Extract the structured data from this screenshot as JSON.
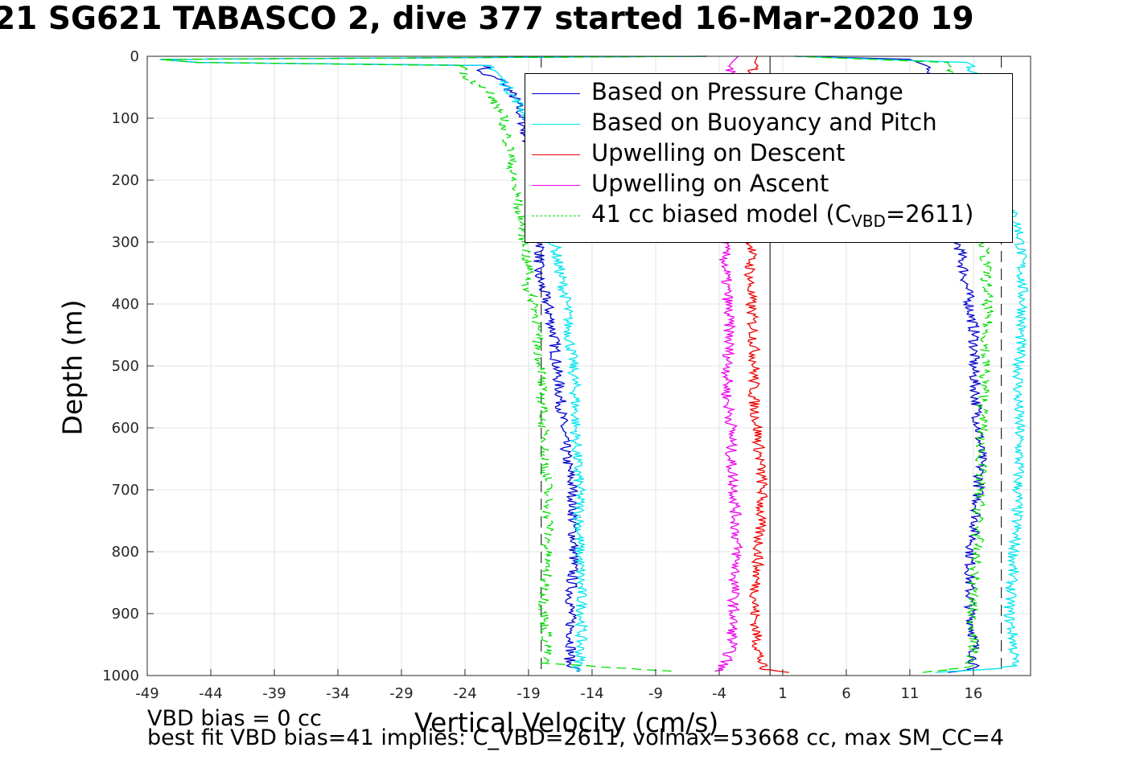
{
  "title": "21 SG621 TABASCO 2, dive 377 started 16-Mar-2020 19",
  "footer": {
    "line1": "VBD bias = 0 cc",
    "line2": "best fit VBD bias=41 implies: C_VBD=2611, volmax=53668 cc, max SM_CC=4"
  },
  "colors": {
    "pressure": "#0000cc",
    "buoyancy": "#00e5ee",
    "descent": "#ee0000",
    "ascent": "#ee00ee",
    "model": "#00dd00",
    "refline": "#000000"
  },
  "legend": {
    "items": [
      {
        "label": "Based on Pressure Change",
        "color": "#0000cc",
        "dash": false
      },
      {
        "label": "Based on Buoyancy and Pitch",
        "color": "#00e5ee",
        "dash": false
      },
      {
        "label": "Upwelling on Descent",
        "color": "#ee0000",
        "dash": false
      },
      {
        "label": "Upwelling on Ascent",
        "color": "#ee00ee",
        "dash": false
      },
      {
        "label_prefix": "41 cc biased model (C",
        "label_sub": "VBD",
        "label_suffix": "=2611)",
        "color": "#00dd00",
        "dash": true
      }
    ]
  },
  "chart_data": {
    "type": "line",
    "title": "21 SG621 TABASCO 2, dive 377 started 16-Mar-2020 19",
    "xlabel": "Vertical Velocity (cm/s)",
    "ylabel": "Depth (m)",
    "xlim": [
      -49,
      20.5
    ],
    "ylim": [
      0,
      1000
    ],
    "y_reversed": true,
    "grid": true,
    "legend_position": "top-right",
    "xticks": [
      -49,
      -44,
      -39,
      -34,
      -29,
      -24,
      -19,
      -14,
      -9,
      -4,
      1,
      6,
      11,
      16
    ],
    "yticks": [
      0,
      100,
      200,
      300,
      400,
      500,
      600,
      700,
      800,
      900,
      1000
    ],
    "reference_lines": [
      {
        "x": 0,
        "style": "solid"
      },
      {
        "x": -18,
        "style": "dashed"
      },
      {
        "x": 18.2,
        "style": "dashed"
      }
    ],
    "series": [
      {
        "name": "Based on Pressure Change",
        "color": "#0000cc",
        "descent": [
          [
            0,
            -5
          ],
          [
            5,
            -48
          ],
          [
            10,
            -45
          ],
          [
            15,
            -22
          ],
          [
            25,
            -23
          ],
          [
            40,
            -21
          ],
          [
            70,
            -20
          ],
          [
            100,
            -19.5
          ],
          [
            150,
            -19
          ],
          [
            200,
            -18.5
          ],
          [
            250,
            -18.2
          ],
          [
            300,
            -18
          ],
          [
            350,
            -18.3
          ],
          [
            400,
            -17.5
          ],
          [
            450,
            -17
          ],
          [
            500,
            -16.8
          ],
          [
            550,
            -16.5
          ],
          [
            600,
            -16.3
          ],
          [
            650,
            -16
          ],
          [
            700,
            -15.5
          ],
          [
            750,
            -15.5
          ],
          [
            800,
            -15.4
          ],
          [
            850,
            -15.6
          ],
          [
            900,
            -15.7
          ],
          [
            950,
            -15.6
          ],
          [
            980,
            -15.8
          ],
          [
            993,
            -15
          ]
        ],
        "ascent": [
          [
            995,
            14
          ],
          [
            990,
            15.5
          ],
          [
            985,
            16
          ],
          [
            950,
            16.1
          ],
          [
            900,
            15.8
          ],
          [
            850,
            15.7
          ],
          [
            800,
            15.8
          ],
          [
            750,
            16.2
          ],
          [
            700,
            16.4
          ],
          [
            650,
            16.6
          ],
          [
            600,
            16.4
          ],
          [
            550,
            16.2
          ],
          [
            500,
            16.0
          ],
          [
            450,
            16.1
          ],
          [
            400,
            15.7
          ],
          [
            350,
            15.3
          ],
          [
            300,
            14.8
          ],
          [
            250,
            14.5
          ],
          [
            200,
            14
          ],
          [
            150,
            13.5
          ],
          [
            100,
            13.2
          ],
          [
            50,
            13
          ],
          [
            20,
            12.5
          ],
          [
            5,
            11
          ],
          [
            0,
            2
          ]
        ]
      },
      {
        "name": "Based on Buoyancy and Pitch",
        "color": "#00e5ee",
        "descent": [
          [
            0,
            -5
          ],
          [
            5,
            -48
          ],
          [
            10,
            -45
          ],
          [
            15,
            -22
          ],
          [
            25,
            -21.5
          ],
          [
            40,
            -21
          ],
          [
            70,
            -20
          ],
          [
            100,
            -19
          ],
          [
            150,
            -18.5
          ],
          [
            200,
            -18
          ],
          [
            250,
            -17.5
          ],
          [
            300,
            -17
          ],
          [
            350,
            -16.5
          ],
          [
            400,
            -16
          ],
          [
            450,
            -15.8
          ],
          [
            500,
            -15.5
          ],
          [
            550,
            -15.3
          ],
          [
            600,
            -15.3
          ],
          [
            650,
            -15.2
          ],
          [
            700,
            -15
          ],
          [
            750,
            -15
          ],
          [
            800,
            -15
          ],
          [
            850,
            -14.9
          ],
          [
            900,
            -14.8
          ],
          [
            950,
            -14.9
          ],
          [
            980,
            -15
          ],
          [
            993,
            -15.2
          ]
        ],
        "ascent": [
          [
            995,
            13
          ],
          [
            990,
            17
          ],
          [
            985,
            19.2
          ],
          [
            950,
            19.2
          ],
          [
            900,
            18.8
          ],
          [
            850,
            19.0
          ],
          [
            800,
            19.2
          ],
          [
            750,
            19.4
          ],
          [
            700,
            19.5
          ],
          [
            650,
            19.6
          ],
          [
            600,
            19.6
          ],
          [
            550,
            19.5
          ],
          [
            500,
            19.6
          ],
          [
            450,
            19.7
          ],
          [
            400,
            19.9
          ],
          [
            350,
            19.8
          ],
          [
            300,
            19.7
          ],
          [
            280,
            19.6
          ],
          [
            250,
            19
          ],
          [
            200,
            18.5
          ],
          [
            150,
            18
          ],
          [
            100,
            17.5
          ],
          [
            50,
            17
          ],
          [
            10,
            15.5
          ],
          [
            0,
            2
          ]
        ]
      },
      {
        "name": "Upwelling on Descent",
        "color": "#ee0000",
        "profile": [
          [
            0,
            -1
          ],
          [
            10,
            -1.2
          ],
          [
            30,
            -1.4
          ],
          [
            60,
            -1.3
          ],
          [
            100,
            -1.5
          ],
          [
            150,
            -1.3
          ],
          [
            200,
            -1.4
          ],
          [
            250,
            -1.5
          ],
          [
            300,
            -1.4
          ],
          [
            350,
            -1.6
          ],
          [
            400,
            -1.5
          ],
          [
            450,
            -1.3
          ],
          [
            500,
            -1.2
          ],
          [
            550,
            -1.3
          ],
          [
            600,
            -1
          ],
          [
            650,
            -0.8
          ],
          [
            700,
            -0.6
          ],
          [
            750,
            -0.8
          ],
          [
            800,
            -0.9
          ],
          [
            850,
            -1.1
          ],
          [
            900,
            -1.2
          ],
          [
            950,
            -1
          ],
          [
            990,
            -0.6
          ],
          [
            995,
            1.5
          ]
        ]
      },
      {
        "name": "Upwelling on Ascent",
        "color": "#ee00ee",
        "profile": [
          [
            0,
            -2.5
          ],
          [
            10,
            -3
          ],
          [
            30,
            -3.2
          ],
          [
            60,
            -3.5
          ],
          [
            100,
            -3.7
          ],
          [
            150,
            -3.5
          ],
          [
            200,
            -3.6
          ],
          [
            250,
            -3.7
          ],
          [
            300,
            -3.6
          ],
          [
            350,
            -3.5
          ],
          [
            400,
            -3.3
          ],
          [
            450,
            -3.2
          ],
          [
            500,
            -3.3
          ],
          [
            550,
            -3.4
          ],
          [
            600,
            -3.0
          ],
          [
            650,
            -3.1
          ],
          [
            700,
            -2.8
          ],
          [
            750,
            -2.7
          ],
          [
            800,
            -2.6
          ],
          [
            850,
            -2.8
          ],
          [
            900,
            -2.9
          ],
          [
            950,
            -3.0
          ],
          [
            980,
            -3.5
          ],
          [
            993,
            -4.2
          ]
        ]
      },
      {
        "name": "41 cc biased model",
        "color": "#00dd00",
        "dashed": true,
        "descent": [
          [
            0,
            -5
          ],
          [
            5,
            -48
          ],
          [
            10,
            -45
          ],
          [
            15,
            -24
          ],
          [
            30,
            -24
          ],
          [
            60,
            -22
          ],
          [
            100,
            -21
          ],
          [
            150,
            -20.5
          ],
          [
            200,
            -20.2
          ],
          [
            250,
            -19.7
          ],
          [
            300,
            -19.3
          ],
          [
            350,
            -19
          ],
          [
            370,
            -19.2
          ],
          [
            400,
            -18.5
          ],
          [
            450,
            -18.3
          ],
          [
            500,
            -18
          ],
          [
            550,
            -18
          ],
          [
            600,
            -17.8
          ],
          [
            650,
            -17.7
          ],
          [
            700,
            -17.5
          ],
          [
            750,
            -17.4
          ],
          [
            800,
            -17.6
          ],
          [
            850,
            -17.7
          ],
          [
            900,
            -17.8
          ],
          [
            950,
            -17.5
          ],
          [
            980,
            -17.8
          ],
          [
            993,
            -8
          ]
        ],
        "ascent": [
          [
            995,
            12
          ],
          [
            990,
            14
          ],
          [
            985,
            15.8
          ],
          [
            950,
            16.0
          ],
          [
            900,
            15.9
          ],
          [
            850,
            16.0
          ],
          [
            800,
            16.3
          ],
          [
            750,
            16.4
          ],
          [
            700,
            16.5
          ],
          [
            650,
            16.6
          ],
          [
            600,
            16.7
          ],
          [
            550,
            16.8
          ],
          [
            500,
            16.9
          ],
          [
            450,
            17.0
          ],
          [
            400,
            17.1
          ],
          [
            350,
            17.0
          ],
          [
            300,
            16.8
          ],
          [
            250,
            16.5
          ],
          [
            200,
            16.2
          ],
          [
            150,
            15.8
          ],
          [
            100,
            15.5
          ],
          [
            50,
            15.2
          ],
          [
            10,
            14
          ],
          [
            0,
            2
          ]
        ]
      }
    ]
  }
}
